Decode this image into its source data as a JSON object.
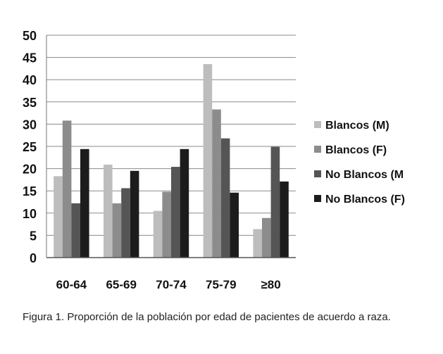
{
  "chart_data": {
    "type": "bar",
    "categories": [
      "60-64",
      "65-69",
      "70-74",
      "75-79",
      "≥80"
    ],
    "series": [
      {
        "name": "Blancos (M)",
        "values": [
          18.3,
          20.9,
          10.5,
          43.5,
          6.4
        ],
        "color": "#bdbdbd"
      },
      {
        "name": "Blancos (F)",
        "values": [
          30.8,
          12.2,
          14.8,
          33.3,
          8.9
        ],
        "color": "#8c8c8c"
      },
      {
        "name": "No Blancos (M",
        "values": [
          12.2,
          15.6,
          20.4,
          26.8,
          24.9
        ],
        "color": "#555555"
      },
      {
        "name": "No Blancos (F)",
        "values": [
          24.4,
          19.5,
          24.4,
          14.6,
          17.1
        ],
        "color": "#1c1c1c"
      }
    ],
    "ylim": [
      0,
      50
    ],
    "yticks": [
      0,
      5,
      10,
      15,
      20,
      25,
      30,
      35,
      40,
      45,
      50
    ],
    "grid": true,
    "legend": "right"
  },
  "caption": "Figura 1. Proporción de la población por edad de pacientes de acuerdo a raza."
}
